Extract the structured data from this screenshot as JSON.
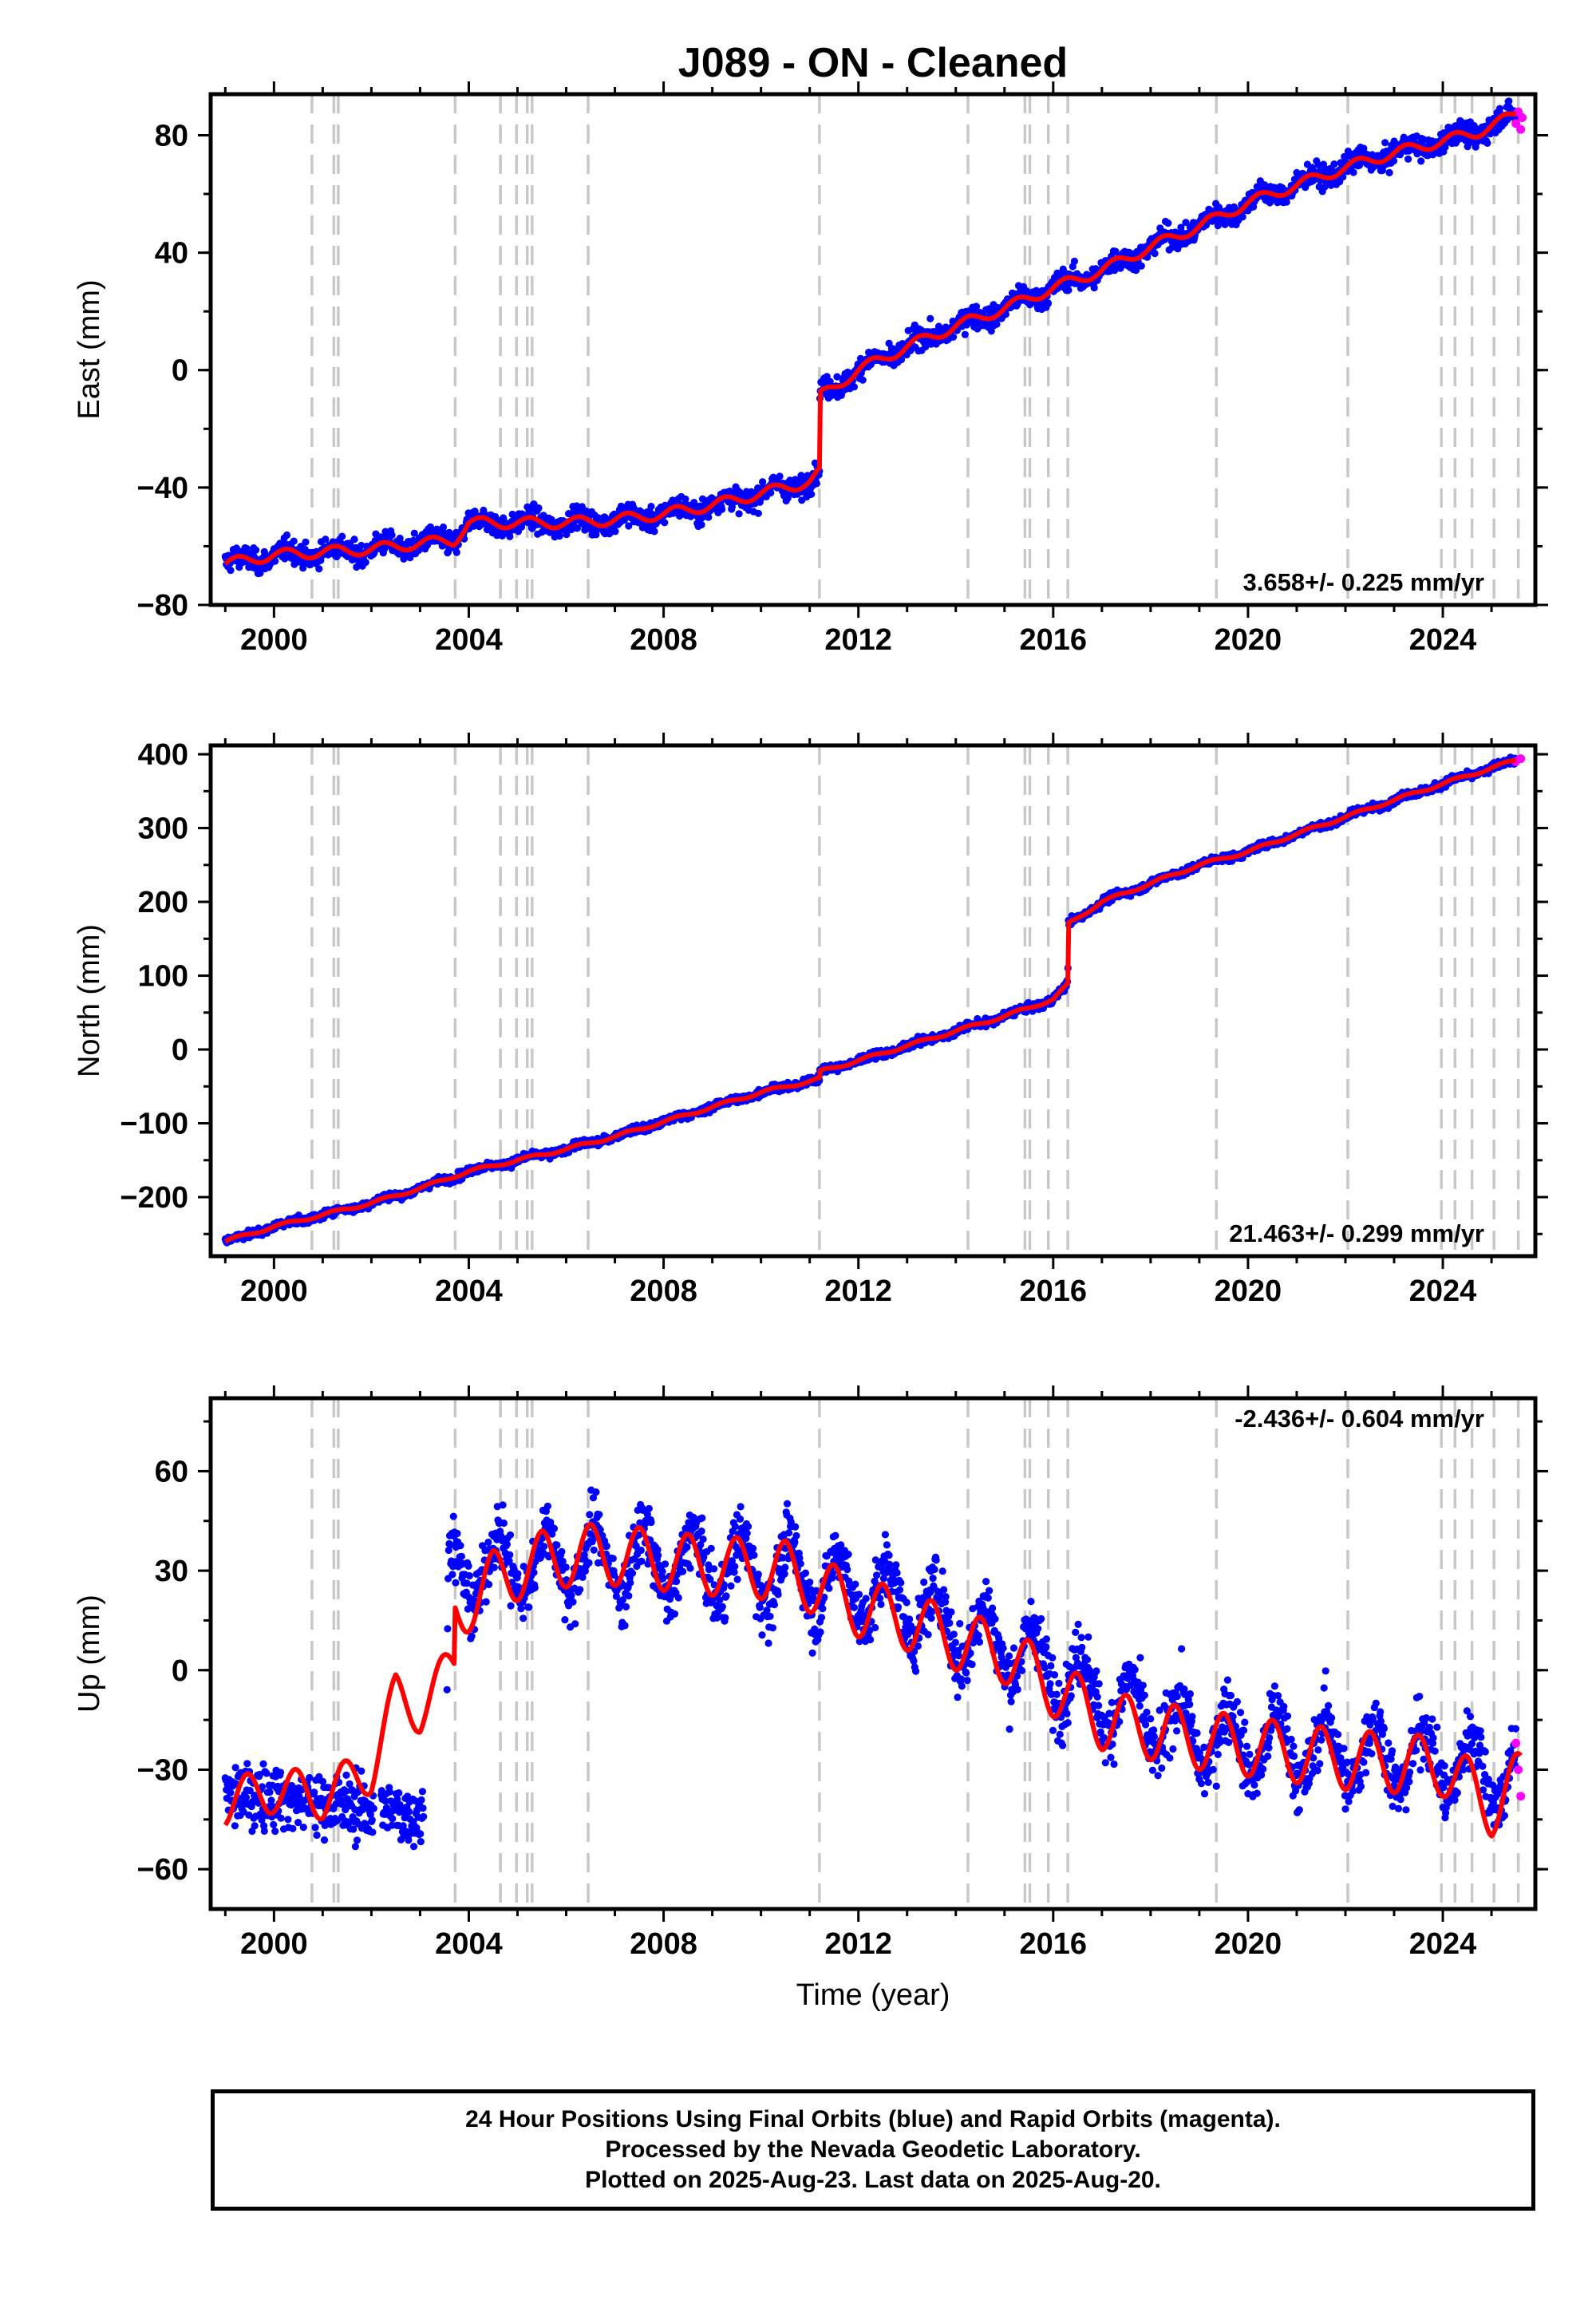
{
  "title": "J089  - ON - Cleaned",
  "x_axis_label": "Time (year)",
  "colors": {
    "final_orbits": "#0000ff",
    "rapid_orbits": "#ff00ff",
    "model_fit": "#ff0000",
    "event_lines": "#c8c8c8",
    "frame": "#000000"
  },
  "footer": [
    "24 Hour Positions Using Final Orbits (blue) and Rapid Orbits (magenta).",
    "Processed by the Nevada Geodetic Laboratory.",
    "Plotted on 2025-Aug-23. Last data on 2025-Aug-20."
  ],
  "chart_data": [
    {
      "type": "scatter",
      "ylabel": "East (mm)",
      "rate_label": "3.658+/- 0.225 mm/yr",
      "rate_position": "bottom-right",
      "xlim": [
        1998.7,
        2025.9
      ],
      "ylim": [
        -80,
        94
      ],
      "xticks": [
        2000,
        2004,
        2008,
        2012,
        2016,
        2020,
        2024
      ],
      "yticks": [
        -80,
        -40,
        0,
        40,
        80
      ],
      "event_lines": [
        2000.78,
        2001.23,
        2001.32,
        2003.72,
        2004.65,
        2004.98,
        2005.2,
        2005.3,
        2006.45,
        2011.2,
        2014.25,
        2015.42,
        2015.52,
        2015.9,
        2016.3,
        2019.35,
        2022.05,
        2023.97,
        2024.25,
        2024.6,
        2025.05,
        2025.55
      ],
      "series": [
        {
          "name": "Final Orbits",
          "style": "blue dots",
          "x": [
            1999.0,
            2000.0,
            2001.0,
            2002.0,
            2003.0,
            2003.7,
            2004.0,
            2005.0,
            2006.0,
            2007.0,
            2008.0,
            2009.0,
            2010.0,
            2011.0,
            2011.2,
            2011.21,
            2012.0,
            2013.0,
            2014.0,
            2015.0,
            2016.0,
            2017.0,
            2018.0,
            2019.0,
            2020.0,
            2021.0,
            2022.0,
            2023.0,
            2024.0,
            2024.7,
            2025.5
          ],
          "y": [
            -66,
            -63,
            -62,
            -61,
            -59,
            -58,
            -52,
            -52,
            -52,
            -51,
            -49,
            -46,
            -42,
            -38,
            -35,
            -9,
            0,
            8,
            15,
            21,
            28,
            34,
            42,
            49,
            57,
            63,
            69,
            74,
            78,
            81,
            87
          ]
        },
        {
          "name": "Rapid Orbits",
          "style": "magenta dots",
          "x": [
            2025.5,
            2025.55,
            2025.6,
            2025.63
          ],
          "y": [
            84,
            88,
            82,
            86
          ]
        },
        {
          "name": "Model",
          "style": "red line",
          "x": [
            1999.0,
            2000.0,
            2001.0,
            2002.0,
            2003.0,
            2003.7,
            2004.0,
            2005.0,
            2006.0,
            2007.0,
            2008.0,
            2009.0,
            2010.0,
            2011.0,
            2011.2,
            2011.21,
            2012.0,
            2013.0,
            2014.0,
            2015.0,
            2016.0,
            2017.0,
            2018.0,
            2019.0,
            2020.0,
            2021.0,
            2022.0,
            2023.0,
            2024.0,
            2024.7,
            2025.5
          ],
          "y": [
            -66,
            -63,
            -62,
            -61,
            -59,
            -58,
            -52,
            -52,
            -52,
            -51,
            -49,
            -46,
            -42,
            -38,
            -35,
            -9,
            0,
            8,
            15,
            21,
            28,
            34,
            42,
            49,
            57,
            63,
            69,
            74,
            78,
            81,
            87
          ]
        }
      ]
    },
    {
      "type": "scatter",
      "ylabel": "North (mm)",
      "rate_label": "21.463+/- 0.299 mm/yr",
      "rate_position": "bottom-right",
      "xlim": [
        1998.7,
        2025.9
      ],
      "ylim": [
        -280,
        412
      ],
      "xticks": [
        2000,
        2004,
        2008,
        2012,
        2016,
        2020,
        2024
      ],
      "yticks": [
        -200,
        -100,
        0,
        100,
        200,
        300,
        400
      ],
      "event_lines": [
        2000.78,
        2001.23,
        2001.32,
        2003.72,
        2004.65,
        2004.98,
        2005.2,
        2005.3,
        2006.45,
        2011.2,
        2014.25,
        2015.42,
        2015.52,
        2015.9,
        2016.3,
        2019.35,
        2022.05,
        2023.97,
        2024.25,
        2024.6,
        2025.05,
        2025.55
      ],
      "series": [
        {
          "name": "Final Orbits",
          "style": "blue dots",
          "x": [
            1999.0,
            2000.0,
            2001.0,
            2002.0,
            2003.0,
            2004.0,
            2005.0,
            2006.0,
            2007.0,
            2008.0,
            2009.0,
            2010.0,
            2011.0,
            2011.2,
            2011.21,
            2012.0,
            2013.0,
            2014.0,
            2015.0,
            2016.0,
            2016.3,
            2016.31,
            2017.0,
            2018.0,
            2019.0,
            2020.0,
            2021.0,
            2022.0,
            2023.0,
            2024.0,
            2024.7,
            2025.5
          ],
          "y": [
            -260,
            -240,
            -224,
            -208,
            -188,
            -165,
            -150,
            -135,
            -118,
            -98,
            -78,
            -58,
            -43,
            -40,
            -30,
            -15,
            5,
            25,
            45,
            68,
            88,
            170,
            200,
            225,
            250,
            268,
            292,
            315,
            338,
            360,
            375,
            392
          ]
        },
        {
          "name": "Rapid Orbits",
          "style": "magenta dots",
          "x": [
            2025.5,
            2025.6
          ],
          "y": [
            390,
            394
          ]
        },
        {
          "name": "Model",
          "style": "red line",
          "x": [
            1999.0,
            2000.0,
            2001.0,
            2002.0,
            2003.0,
            2004.0,
            2005.0,
            2006.0,
            2007.0,
            2008.0,
            2009.0,
            2010.0,
            2011.0,
            2011.2,
            2011.21,
            2012.0,
            2013.0,
            2014.0,
            2015.0,
            2016.0,
            2016.3,
            2016.31,
            2017.0,
            2018.0,
            2019.0,
            2020.0,
            2021.0,
            2022.0,
            2023.0,
            2024.0,
            2024.7,
            2025.5
          ],
          "y": [
            -260,
            -240,
            -224,
            -208,
            -188,
            -165,
            -150,
            -135,
            -118,
            -98,
            -78,
            -58,
            -43,
            -40,
            -30,
            -15,
            5,
            25,
            45,
            68,
            88,
            170,
            200,
            225,
            250,
            268,
            292,
            315,
            338,
            360,
            375,
            392
          ]
        }
      ]
    },
    {
      "type": "scatter",
      "ylabel": "Up (mm)",
      "rate_label": "-2.436+/- 0.604 mm/yr",
      "rate_position": "top-right",
      "xlim": [
        1998.7,
        2025.9
      ],
      "ylim": [
        -72,
        82
      ],
      "xticks": [
        2000,
        2004,
        2008,
        2012,
        2016,
        2020,
        2024
      ],
      "yticks": [
        -60,
        -30,
        0,
        30,
        60
      ],
      "event_lines": [
        2000.78,
        2001.23,
        2001.32,
        2003.72,
        2004.65,
        2004.98,
        2005.2,
        2005.3,
        2006.45,
        2011.2,
        2014.25,
        2015.42,
        2015.52,
        2015.9,
        2016.3,
        2019.35,
        2022.05,
        2023.97,
        2024.25,
        2024.6,
        2025.05,
        2025.55
      ],
      "series": [
        {
          "name": "Final Orbits",
          "style": "blue dots",
          "x": [
            1999.0,
            2000.0,
            2001.0,
            2002.0,
            2003.0,
            2003.5,
            2003.6,
            2004.0,
            2005.0,
            2006.0,
            2007.0,
            2008.0,
            2009.0,
            2010.0,
            2011.0,
            2012.0,
            2013.0,
            2014.0,
            2015.0,
            2016.0,
            2017.0,
            2018.0,
            2019.0,
            2020.0,
            2021.0,
            2022.0,
            2023.0,
            2024.0,
            2025.0,
            2025.5
          ],
          "y": [
            -38,
            -38,
            -40,
            -42,
            -44,
            -45,
            30,
            30,
            32,
            33,
            33,
            32,
            31,
            30,
            28,
            24,
            20,
            12,
            8,
            0,
            -8,
            -15,
            -20,
            -22,
            -24,
            -25,
            -26,
            -28,
            -30,
            -32
          ]
        },
        {
          "name": "Rapid Orbits",
          "style": "magenta dots",
          "x": [
            2025.5,
            2025.55,
            2025.6
          ],
          "y": [
            -22,
            -30,
            -38
          ]
        },
        {
          "name": "Model",
          "style": "red line",
          "x": [
            1999.0,
            2000.0,
            2001.0,
            2002.0,
            2002.5,
            2003.0,
            2003.7,
            2003.71,
            2004.5,
            2005.5,
            2006.5,
            2007.5,
            2008.5,
            2009.5,
            2010.5,
            2011.2,
            2012.0,
            2013.0,
            2014.0,
            2015.0,
            2016.0,
            2017.0,
            2018.0,
            2019.0,
            2020.0,
            2021.0,
            2022.0,
            2023.0,
            2024.0,
            2025.0,
            2025.6
          ],
          "y": [
            -40,
            -36,
            -38,
            -30,
            -8,
            -12,
            2,
            20,
            30,
            36,
            38,
            37,
            35,
            34,
            33,
            28,
            22,
            18,
            12,
            8,
            -2,
            -12,
            -15,
            -18,
            -20,
            -22,
            -24,
            -25,
            -26,
            -38,
            -30
          ]
        }
      ]
    }
  ]
}
